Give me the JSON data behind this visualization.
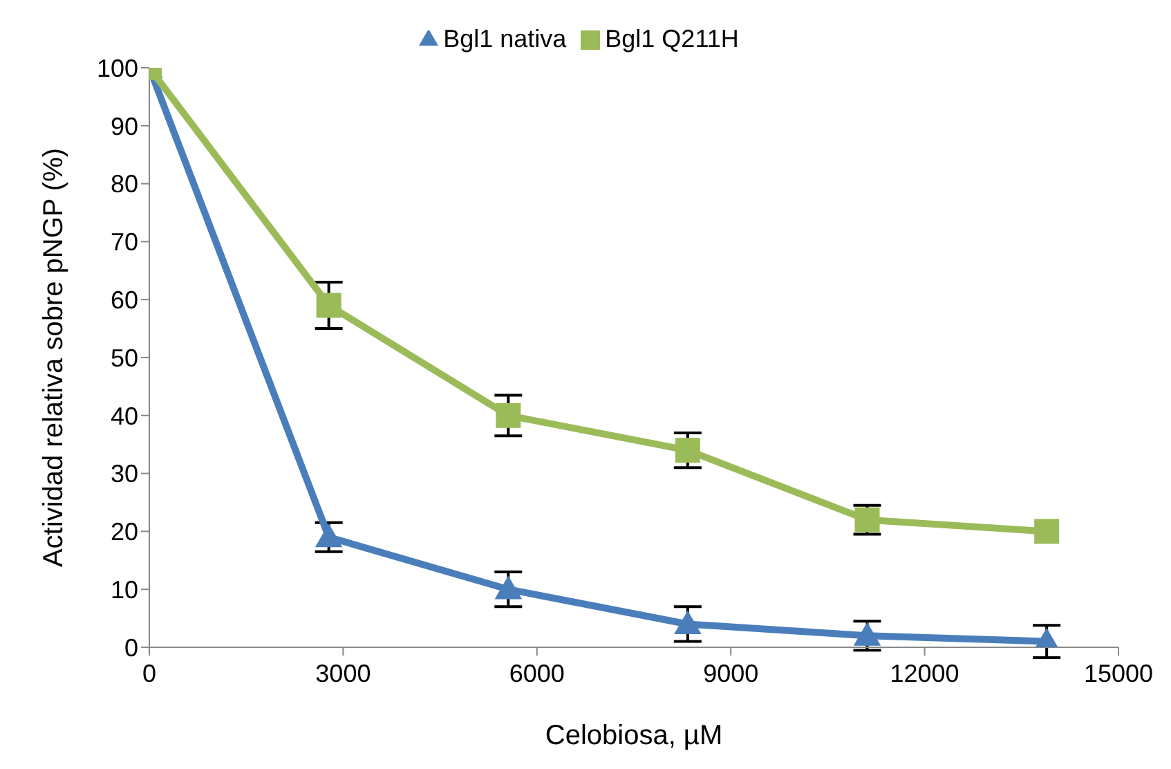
{
  "chart_data": {
    "type": "line",
    "xlabel": "Celobiosa, µM",
    "ylabel": "Actividad relativa sobre pNGP (%)",
    "x": [
      0,
      2778,
      5556,
      8333,
      11111,
      13889
    ],
    "series": [
      {
        "name": "Bgl1 nativa",
        "color": "#4a7ebb",
        "marker": "triangle",
        "values": [
          100,
          19,
          10,
          4,
          2,
          1
        ],
        "errors": [
          null,
          2.5,
          3,
          3,
          2.5,
          2.8
        ]
      },
      {
        "name": "Bgl1 Q211H",
        "color": "#9bbb59",
        "marker": "square",
        "values": [
          100,
          59,
          40,
          34,
          22,
          20
        ],
        "errors": [
          null,
          4,
          3.5,
          3,
          2.5,
          null
        ]
      }
    ],
    "xlim": [
      0,
      15000
    ],
    "xticks": [
      0,
      3000,
      6000,
      9000,
      12000,
      15000
    ],
    "ylim": [
      0,
      100
    ],
    "yticks": [
      0,
      10,
      20,
      30,
      40,
      50,
      60,
      70,
      80,
      90,
      100
    ],
    "grid": false,
    "legend": "top",
    "line_style": "solid"
  }
}
